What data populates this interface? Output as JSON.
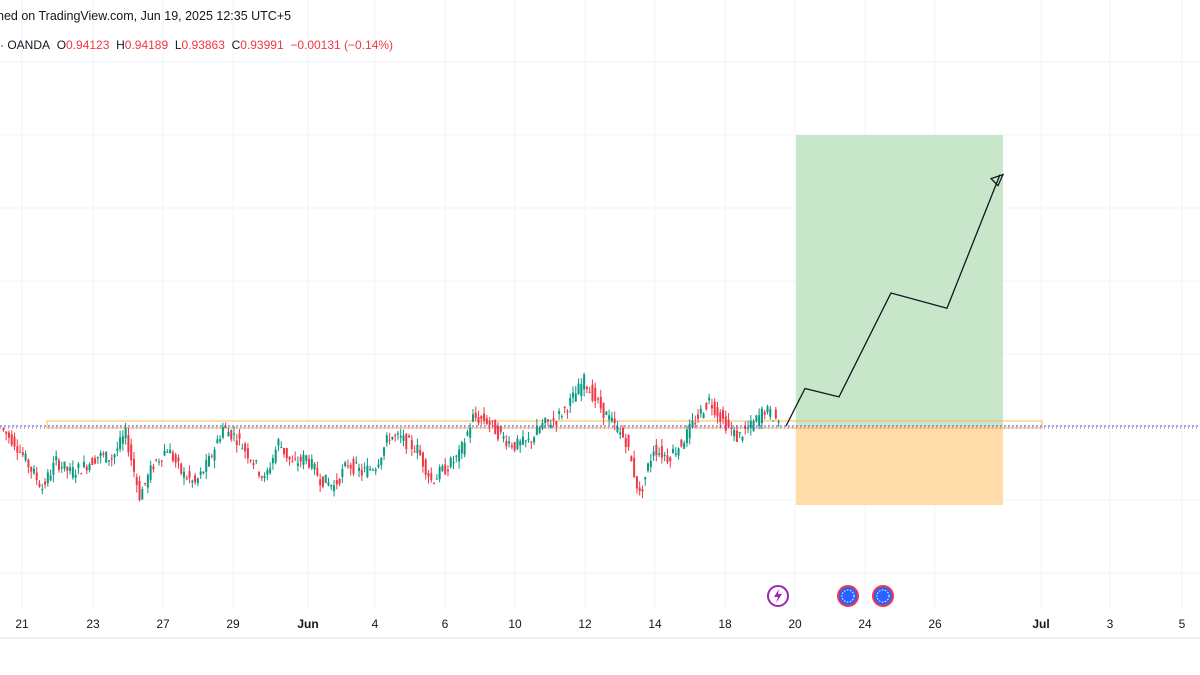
{
  "header": {
    "published_line": "ned on TradingView.com, Jun 19, 2025 12:35 UTC+5",
    "source": "· OANDA",
    "ohlc": {
      "o_label": "O",
      "o_value": "0.94123",
      "h_label": "H",
      "h_value": "0.94189",
      "l_label": "L",
      "l_value": "0.93863",
      "c_label": "C",
      "c_value": "0.93991",
      "change": "−0.00131 (−0.14%)"
    }
  },
  "colors": {
    "up": "#089981",
    "down": "#f23645",
    "profit_zone": "#c8e6c9",
    "loss_zone": "#ffdcaa",
    "price_line": "#2962ff",
    "grid": "#f0f3fa",
    "arrow": "#131722"
  },
  "chart_data": {
    "type": "candlestick",
    "x_axis": {
      "ticks": [
        "21",
        "23",
        "27",
        "29",
        "Jun",
        "4",
        "6",
        "10",
        "12",
        "14",
        "18",
        "20",
        "24",
        "26",
        "Jul",
        "3",
        "5"
      ],
      "month_ticks": [
        "Jun",
        "Jul"
      ]
    },
    "y_range": [
      0.915,
      0.987
    ],
    "last_price": 0.93991,
    "resistance_level": 0.9404,
    "candles_close_path": [
      [
        0.9388,
        0.937
      ],
      [
        0.937,
        0.934
      ],
      [
        0.934,
        0.931
      ],
      [
        0.931,
        0.9345
      ],
      [
        0.9345,
        0.933
      ],
      [
        0.933,
        0.9338
      ],
      [
        0.9338,
        0.9352
      ],
      [
        0.9352,
        0.9349
      ],
      [
        0.9349,
        0.938
      ],
      [
        0.938,
        0.93
      ],
      [
        0.93,
        0.934
      ],
      [
        0.934,
        0.9362
      ],
      [
        0.9362,
        0.933
      ],
      [
        0.933,
        0.9315
      ],
      [
        0.9315,
        0.9345
      ],
      [
        0.9345,
        0.9389
      ],
      [
        0.9389,
        0.9375
      ],
      [
        0.9375,
        0.935
      ],
      [
        0.935,
        0.932
      ],
      [
        0.932,
        0.937
      ],
      [
        0.937,
        0.934
      ],
      [
        0.934,
        0.935
      ],
      [
        0.935,
        0.9322
      ],
      [
        0.9322,
        0.9312
      ],
      [
        0.9312,
        0.9342
      ],
      [
        0.9342,
        0.933
      ],
      [
        0.933,
        0.934
      ],
      [
        0.934,
        0.9378
      ],
      [
        0.9378,
        0.9372
      ],
      [
        0.9372,
        0.936
      ],
      [
        0.936,
        0.932
      ],
      [
        0.932,
        0.9335
      ],
      [
        0.9335,
        0.9352
      ],
      [
        0.9352,
        0.9402
      ],
      [
        0.9402,
        0.9398
      ],
      [
        0.9398,
        0.9378
      ],
      [
        0.9378,
        0.9365
      ],
      [
        0.9365,
        0.937
      ],
      [
        0.937,
        0.9392
      ],
      [
        0.9392,
        0.94
      ],
      [
        0.94,
        0.9422
      ],
      [
        0.9422,
        0.945
      ],
      [
        0.945,
        0.942
      ],
      [
        0.942,
        0.9395
      ],
      [
        0.9395,
        0.9372
      ],
      [
        0.9372,
        0.93
      ],
      [
        0.93,
        0.9362
      ],
      [
        0.9362,
        0.935
      ],
      [
        0.935,
        0.9368
      ],
      [
        0.9368,
        0.9398
      ],
      [
        0.9398,
        0.9425
      ],
      [
        0.9425,
        0.9398
      ],
      [
        0.9398,
        0.9376
      ],
      [
        0.9376,
        0.939
      ],
      [
        0.939,
        0.9412
      ],
      [
        0.9412,
        0.9398
      ]
    ],
    "trade": {
      "entry": 0.9404,
      "target": 0.972,
      "stop": 0.9297,
      "entry_date": "Jun 20",
      "end_date": "Jun 29"
    },
    "projection_path": [
      [
        "Jun 19",
        0.9404
      ],
      [
        "Jun 20",
        0.944
      ],
      [
        "Jun 22",
        0.9429
      ],
      [
        "Jun 24",
        0.9565
      ],
      [
        "Jun 26",
        0.9545
      ],
      [
        "Jun 29",
        0.972
      ]
    ],
    "grid": true
  }
}
